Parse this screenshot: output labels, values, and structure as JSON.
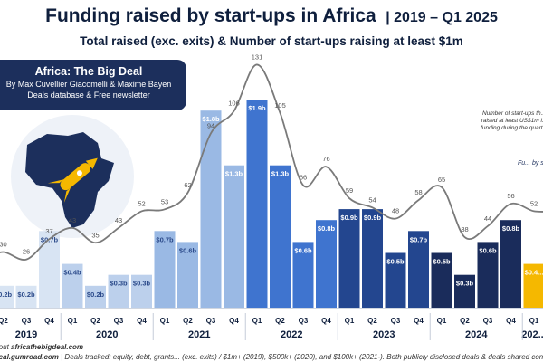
{
  "title": "Funding raised by start-ups in Africa",
  "title_period": "| 2019 – Q1 2025",
  "subtitle": "Total raised (exc. exits) & Number of start-ups raising at least $1m",
  "brand": {
    "title": "Africa: The Big Deal",
    "line1": "By Max Cuvellier Giacomelli & Maxime Bayen",
    "line2": "Deals database & Free newsletter"
  },
  "annotations": {
    "count_note": "Number of start-ups th... raised at least US$1m i... funding during the quart...",
    "fund_note": "Fu... by st..."
  },
  "footer": {
    "line1_prefix": "...out ",
    "line1_link": "africathebigdeal.com",
    "line2_link": "...eal.gumroad.com",
    "line2_text": " | Deals tracked: equity, debt, grants... (exc. exits) / $1m+ (2019), $500k+ (2020), and $100k+ (2021-). Both publicly disclosed deals & deals shared confidentially by selected in..."
  },
  "colors": {
    "y2019": "#d8e4f3",
    "y2020": "#bcd0ec",
    "y2021": "#9ab9e4",
    "y2022": "#3f74cf",
    "y2023": "#23468f",
    "y2024": "#1a2c5b",
    "y2025": "#f5b800",
    "line": "#7a7a7a",
    "navy": "#0f1f3d"
  },
  "icons": [
    "africa-map-icon",
    "rocket-icon"
  ],
  "chart_data": {
    "type": "bar",
    "categories": [
      "Q2",
      "Q3",
      "Q4",
      "Q1",
      "Q2",
      "Q3",
      "Q4",
      "Q1",
      "Q2",
      "Q3",
      "Q4",
      "Q1",
      "Q2",
      "Q3",
      "Q4",
      "Q1",
      "Q2",
      "Q3",
      "Q4",
      "Q1",
      "Q2",
      "Q3",
      "Q4",
      "Q1"
    ],
    "years": [
      {
        "label": "2019",
        "start": 0,
        "end": 2
      },
      {
        "label": "2020",
        "start": 3,
        "end": 6
      },
      {
        "label": "2021",
        "start": 7,
        "end": 10
      },
      {
        "label": "2022",
        "start": 11,
        "end": 14
      },
      {
        "label": "2023",
        "start": 15,
        "end": 18
      },
      {
        "label": "2024",
        "start": 19,
        "end": 22
      },
      {
        "label": "202...",
        "start": 23,
        "end": 23
      }
    ],
    "year_index": [
      0,
      0,
      0,
      1,
      1,
      1,
      1,
      2,
      2,
      2,
      2,
      3,
      3,
      3,
      3,
      4,
      4,
      4,
      4,
      5,
      5,
      5,
      5,
      6
    ],
    "series": [
      {
        "name": "Total raised (exc. exits)",
        "values": [
          0.2,
          0.2,
          0.7,
          0.4,
          0.2,
          0.3,
          0.3,
          0.7,
          0.6,
          1.8,
          1.3,
          1.9,
          1.3,
          0.6,
          0.8,
          0.9,
          0.9,
          0.5,
          0.7,
          0.5,
          0.3,
          0.6,
          0.8,
          0.4
        ],
        "labels": [
          "$0.2b",
          "$0.2b",
          "$0.7b",
          "$0.4b",
          "$0.2b",
          "$0.3b",
          "$0.3b",
          "$0.7b",
          "$0.6b",
          "$1.8b",
          "$1.3b",
          "$1.9b",
          "$1.3b",
          "$0.6b",
          "$0.8b",
          "$0.9b",
          "$0.9b",
          "$0.5b",
          "$0.7b",
          "$0.5b",
          "$0.3b",
          "$0.6b",
          "$0.8b",
          "$0.4..."
        ]
      },
      {
        "name": "Number of start-ups raising at least $1m",
        "values": [
          30,
          26,
          37,
          43,
          35,
          43,
          52,
          53,
          62,
          94,
          106,
          131,
          105,
          66,
          76,
          59,
          54,
          48,
          58,
          65,
          38,
          44,
          56,
          52
        ],
        "line_head": 20,
        "line_tail": 23
      }
    ]
  }
}
